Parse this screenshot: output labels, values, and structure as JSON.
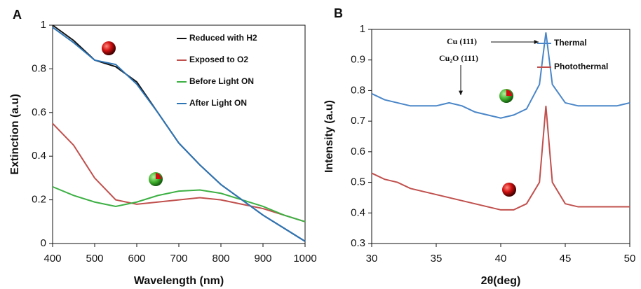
{
  "chart_data": [
    {
      "type": "line",
      "panel_label": "A",
      "x_label": "Wavelength (nm)",
      "y_label": "Extinction (a.u)",
      "x": [
        400,
        450,
        500,
        550,
        600,
        650,
        700,
        750,
        800,
        850,
        900,
        950,
        1000
      ],
      "xlim": [
        400,
        1000
      ],
      "xticks": [
        400,
        500,
        600,
        700,
        800,
        900,
        1000
      ],
      "ylim": [
        0,
        1
      ],
      "yticks": [
        0,
        0.2,
        0.4,
        0.6,
        0.8,
        1
      ],
      "legend": "upper right",
      "series": [
        {
          "name": "Reduced with H2",
          "color": "#111111",
          "values": [
            1.0,
            0.93,
            0.84,
            0.81,
            0.74,
            0.6,
            0.46,
            0.36,
            0.27,
            0.2,
            0.13,
            0.07,
            0.01
          ]
        },
        {
          "name": "Exposed to O2",
          "color": "#c0504d",
          "values": [
            0.55,
            0.45,
            0.3,
            0.2,
            0.18,
            0.19,
            0.2,
            0.21,
            0.2,
            0.18,
            0.16,
            0.13,
            0.1
          ]
        },
        {
          "name": "Before Light ON",
          "color": "#3cb043",
          "values": [
            0.26,
            0.22,
            0.19,
            0.17,
            0.19,
            0.22,
            0.24,
            0.245,
            0.23,
            0.2,
            0.17,
            0.13,
            0.1
          ]
        },
        {
          "name": "After Light ON",
          "color": "#2e75b6",
          "values": [
            0.99,
            0.92,
            0.84,
            0.82,
            0.73,
            0.6,
            0.46,
            0.36,
            0.27,
            0.2,
            0.13,
            0.07,
            0.01
          ]
        }
      ]
    },
    {
      "type": "line",
      "panel_label": "B",
      "x_label": "2θ(deg)",
      "y_label": "Intensity (a.u)",
      "x": [
        30,
        31,
        32,
        33,
        34,
        35,
        36,
        37,
        38,
        39,
        40,
        41,
        42,
        43,
        43.5,
        44,
        45,
        46,
        47,
        48,
        49,
        50
      ],
      "xlim": [
        30,
        50
      ],
      "xticks": [
        30,
        35,
        40,
        45,
        50
      ],
      "ylim": [
        0.3,
        1
      ],
      "yticks": [
        0.3,
        0.4,
        0.5,
        0.6,
        0.7,
        0.8,
        0.9,
        1
      ],
      "legend": "upper right",
      "annotations": [
        "Cu (111)",
        "Cu₂O (111)"
      ],
      "series": [
        {
          "name": "Thermal",
          "color": "#4a86c8",
          "values": [
            0.79,
            0.77,
            0.76,
            0.75,
            0.75,
            0.75,
            0.76,
            0.75,
            0.73,
            0.72,
            0.71,
            0.72,
            0.74,
            0.82,
            0.99,
            0.82,
            0.76,
            0.75,
            0.75,
            0.75,
            0.75,
            0.76
          ]
        },
        {
          "name": "Photothermal",
          "color": "#c0504d",
          "values": [
            0.53,
            0.51,
            0.5,
            0.48,
            0.47,
            0.46,
            0.45,
            0.44,
            0.43,
            0.42,
            0.41,
            0.41,
            0.43,
            0.5,
            0.75,
            0.5,
            0.43,
            0.42,
            0.42,
            0.42,
            0.42,
            0.42
          ]
        }
      ]
    }
  ]
}
